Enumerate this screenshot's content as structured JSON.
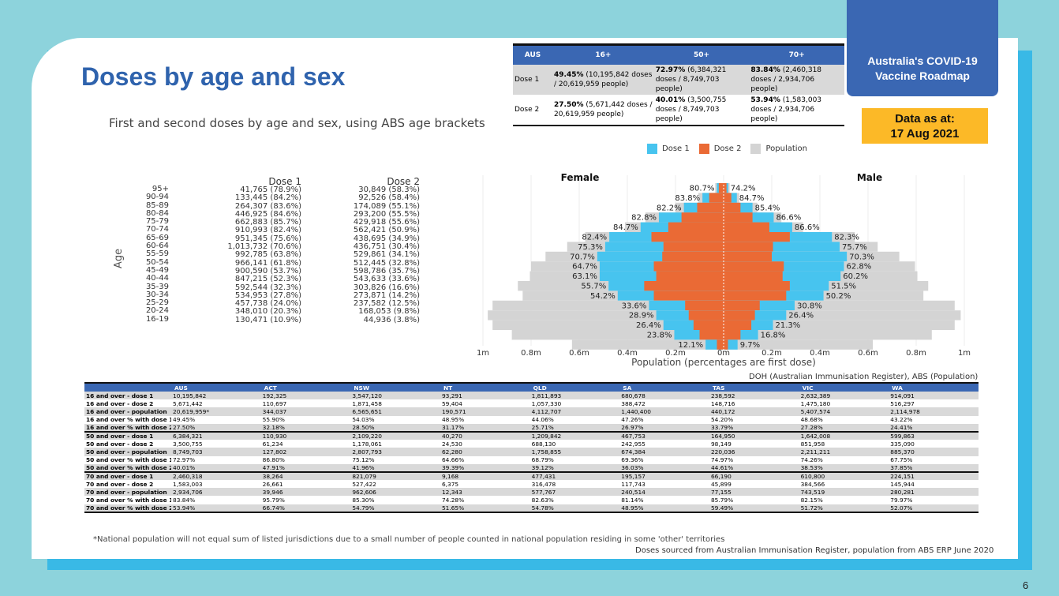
{
  "title": "Doses by age and sex",
  "subtitle": "First and second doses by age and sex, using ABS age brackets",
  "badge": {
    "line1": "Australia's COVID-19",
    "line2": "Vaccine Roadmap"
  },
  "data_as_at": {
    "label": "Data as at:",
    "date": "17 Aug 2021"
  },
  "summary": {
    "headers": [
      "AUS",
      "16+",
      "50+",
      "70+"
    ],
    "rows": [
      {
        "label": "Dose 1",
        "cells": [
          {
            "pct": "49.45%",
            "rest": " (10,195,842 doses / 20,619,959 people)"
          },
          {
            "pct": "72.97%",
            "rest": " (6,384,321 doses / 8,749,703 people)"
          },
          {
            "pct": "83.84%",
            "rest": " (2,460,318 doses / 2,934,706 people)"
          }
        ]
      },
      {
        "label": "Dose 2",
        "cells": [
          {
            "pct": "27.50%",
            "rest": " (5,671,442 doses / 20,619,959 people)"
          },
          {
            "pct": "40.01%",
            "rest": " (3,500,755 doses / 8,749,703 people)"
          },
          {
            "pct": "53.94%",
            "rest": " (1,583,003 doses / 2,934,706 people)"
          }
        ]
      }
    ]
  },
  "legend": {
    "dose1": "Dose 1",
    "dose2": "Dose 2",
    "population": "Population"
  },
  "colors": {
    "dose1": "#47c4ef",
    "dose2": "#ea6a35",
    "population": "#d4d4d4",
    "accent": "#3a67b3",
    "badge": "#fcb927"
  },
  "agelist": {
    "axis_label": "Age",
    "dose1_header": "Dose 1",
    "dose2_header": "Dose 2",
    "ages": [
      "95+",
      "90-94",
      "85-89",
      "80-84",
      "75-79",
      "70-74",
      "65-69",
      "60-64",
      "55-59",
      "50-54",
      "45-49",
      "40-44",
      "35-39",
      "30-34",
      "25-29",
      "20-24",
      "16-19"
    ],
    "dose1": [
      "41,765 (78.9%)",
      "133,445 (84.2%)",
      "264,307 (83.6%)",
      "446,925 (84.6%)",
      "662,883 (85.7%)",
      "910,993 (82.4%)",
      "951,345 (75.6%)",
      "1,013,732 (70.6%)",
      "992,785 (63.8%)",
      "966,141 (61.8%)",
      "900,590 (53.7%)",
      "847,215 (52.3%)",
      "592,544 (32.3%)",
      "534,953 (27.8%)",
      "457,738 (24.0%)",
      "348,010 (20.3%)",
      "130,471 (10.9%)"
    ],
    "dose2": [
      "30,849 (58.3%)",
      "92,526 (58.4%)",
      "174,089 (55.1%)",
      "293,200 (55.5%)",
      "429,918 (55.6%)",
      "562,421 (50.9%)",
      "438,695 (34.9%)",
      "436,751 (30.4%)",
      "529,861 (34.1%)",
      "512,445 (32.8%)",
      "598,786 (35.7%)",
      "543,633 (33.6%)",
      "303,826 (16.6%)",
      "273,871 (14.2%)",
      "237,582 (12.5%)",
      "168,053 (9.8%)",
      "44,936 (3.8%)"
    ]
  },
  "chart_data": {
    "type": "bar",
    "orientation": "horizontal-pyramid",
    "female_label": "Female",
    "male_label": "Male",
    "xlabel": "Population (percentages are first dose)",
    "xlim": [
      -1000000,
      1000000
    ],
    "ticks": [
      "1m",
      "0.8m",
      "0.6m",
      "0.4m",
      "0.2m",
      "0m",
      "0.2m",
      "0.4m",
      "0.6m",
      "0.8m",
      "1m"
    ],
    "categories": [
      "95+",
      "90-94",
      "85-89",
      "80-84",
      "75-79",
      "70-74",
      "65-69",
      "60-64",
      "55-59",
      "50-54",
      "45-49",
      "40-44",
      "35-39",
      "30-34",
      "25-29",
      "20-24",
      "16-19"
    ],
    "female": {
      "population": [
        35000,
        105000,
        200000,
        325000,
        410000,
        575000,
        650000,
        740000,
        800000,
        805000,
        855000,
        835000,
        960000,
        980000,
        960000,
        880000,
        630000
      ],
      "dose1": [
        28000,
        88000,
        165000,
        269000,
        345000,
        475000,
        492000,
        525000,
        515000,
        515000,
        478000,
        440000,
        310000,
        280000,
        250000,
        205000,
        75000
      ],
      "dose2": [
        20000,
        60000,
        110000,
        175000,
        230000,
        300000,
        250000,
        255000,
        290000,
        280000,
        330000,
        290000,
        160000,
        145000,
        125000,
        100000,
        28000
      ],
      "labels": [
        "80.7%",
        "83.8%",
        "82.2%",
        "82.8%",
        "84.7%",
        "82.4%",
        "75.3%",
        "70.7%",
        "64.7%",
        "63.1%",
        "55.7%",
        "54.2%",
        "33.6%",
        "28.9%",
        "26.4%",
        "23.8%",
        "12.1%"
      ]
    },
    "male": {
      "population": [
        25000,
        65000,
        140000,
        240000,
        330000,
        545000,
        640000,
        730000,
        795000,
        805000,
        850000,
        830000,
        960000,
        985000,
        960000,
        865000,
        620000
      ],
      "dose1": [
        19000,
        55000,
        120000,
        208000,
        285000,
        450000,
        482000,
        512000,
        500000,
        486000,
        437000,
        415000,
        295000,
        260000,
        205000,
        143000,
        58000
      ],
      "dose2": [
        12000,
        32000,
        70000,
        120000,
        190000,
        275000,
        205000,
        200000,
        250000,
        245000,
        275000,
        260000,
        150000,
        130000,
        115000,
        70000,
        18000
      ],
      "labels": [
        "74.2%",
        "84.7%",
        "85.4%",
        "86.6%",
        "86.6%",
        "82.3%",
        "75.7%",
        "70.3%",
        "62.8%",
        "60.2%",
        "51.5%",
        "50.2%",
        "30.8%",
        "26.4%",
        "21.3%",
        "16.8%",
        "9.7%"
      ]
    }
  },
  "source_top": "DOH (Australian Immunisation Register), ABS (Population)",
  "table": {
    "headers": [
      "",
      "AUS",
      "ACT",
      "NSW",
      "NT",
      "QLD",
      "SA",
      "TAS",
      "VIC",
      "WA"
    ],
    "rows": [
      [
        "16 and over - dose 1",
        "10,195,842",
        "192,325",
        "3,547,120",
        "93,291",
        "1,811,893",
        "680,678",
        "238,592",
        "2,632,389",
        "914,091"
      ],
      [
        "16 and over - dose 2",
        "5,671,442",
        "110,697",
        "1,871,458",
        "59,404",
        "1,057,330",
        "388,472",
        "148,716",
        "1,475,180",
        "516,297"
      ],
      [
        "16 and over - population",
        "20,619,959*",
        "344,037",
        "6,565,651",
        "190,571",
        "4,112,707",
        "1,440,400",
        "440,172",
        "5,407,574",
        "2,114,978"
      ],
      [
        "16 and over % with dose 1",
        "49.45%",
        "55.90%",
        "54.03%",
        "48.95%",
        "44.06%",
        "47.26%",
        "54.20%",
        "48.68%",
        "43.22%"
      ],
      [
        "16 and over % with dose 2",
        "27.50%",
        "32.18%",
        "28.50%",
        "31.17%",
        "25.71%",
        "26.97%",
        "33.79%",
        "27.28%",
        "24.41%"
      ],
      [
        "50 and over - dose 1",
        "6,384,321",
        "110,930",
        "2,109,220",
        "40,270",
        "1,209,842",
        "467,753",
        "164,950",
        "1,642,008",
        "599,863"
      ],
      [
        "50 and over - dose 2",
        "3,500,755",
        "61,234",
        "1,178,061",
        "24,530",
        "688,130",
        "242,955",
        "98,149",
        "851,958",
        "335,090"
      ],
      [
        "50 and over - population",
        "8,749,703",
        "127,802",
        "2,807,793",
        "62,280",
        "1,758,855",
        "674,384",
        "220,036",
        "2,211,211",
        "885,370"
      ],
      [
        "50 and over % with dose 1",
        "72.97%",
        "86.80%",
        "75.12%",
        "64.66%",
        "68.79%",
        "69.36%",
        "74.97%",
        "74.26%",
        "67.75%"
      ],
      [
        "50 and over % with dose 2",
        "40.01%",
        "47.91%",
        "41.96%",
        "39.39%",
        "39.12%",
        "36.03%",
        "44.61%",
        "38.53%",
        "37.85%"
      ],
      [
        "70 and over - dose 1",
        "2,460,318",
        "38,264",
        "821,079",
        "9,168",
        "477,431",
        "195,157",
        "66,190",
        "610,800",
        "224,151"
      ],
      [
        "70 and over - dose 2",
        "1,583,003",
        "26,661",
        "527,422",
        "6,375",
        "316,478",
        "117,743",
        "45,899",
        "384,566",
        "145,944"
      ],
      [
        "70 and over - population",
        "2,934,706",
        "39,946",
        "962,606",
        "12,343",
        "577,767",
        "240,514",
        "77,155",
        "743,519",
        "280,281"
      ],
      [
        "70 and over % with dose 1",
        "83.84%",
        "95.79%",
        "85.30%",
        "74.28%",
        "82.63%",
        "81.14%",
        "85.79%",
        "82.15%",
        "79.97%"
      ],
      [
        "70 and over % with dose 2",
        "53.94%",
        "66.74%",
        "54.79%",
        "51.65%",
        "54.78%",
        "48.95%",
        "59.49%",
        "51.72%",
        "52.07%"
      ]
    ]
  },
  "footnote": "*National population will not equal sum of listed jurisdictions due to a small number of people counted in national population residing in some 'other' territories",
  "source_bottom": "Doses sourced from Australian Immunisation Register, population from ABS ERP June 2020",
  "page_number": "6"
}
